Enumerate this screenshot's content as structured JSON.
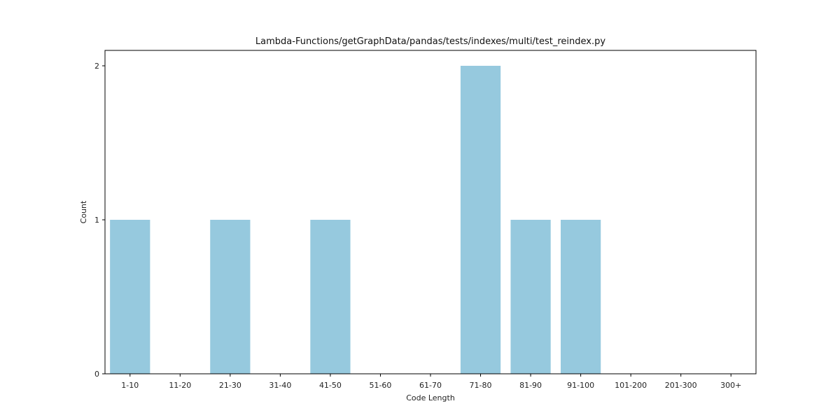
{
  "chart_data": {
    "type": "bar",
    "title": "Lambda-Functions/getGraphData/pandas/tests/indexes/multi/test_reindex.py",
    "xlabel": "Code Length",
    "ylabel": "Count",
    "categories": [
      "1-10",
      "11-20",
      "21-30",
      "31-40",
      "41-50",
      "51-60",
      "61-70",
      "71-80",
      "81-90",
      "91-100",
      "101-200",
      "201-300",
      "300+"
    ],
    "values": [
      1,
      0,
      1,
      0,
      1,
      0,
      0,
      2,
      1,
      1,
      0,
      0,
      0
    ],
    "ylim": [
      0,
      2.1
    ],
    "yticks": [
      0,
      1,
      2
    ],
    "bar_color": "#96c9de",
    "grid": false,
    "legend": "none"
  }
}
